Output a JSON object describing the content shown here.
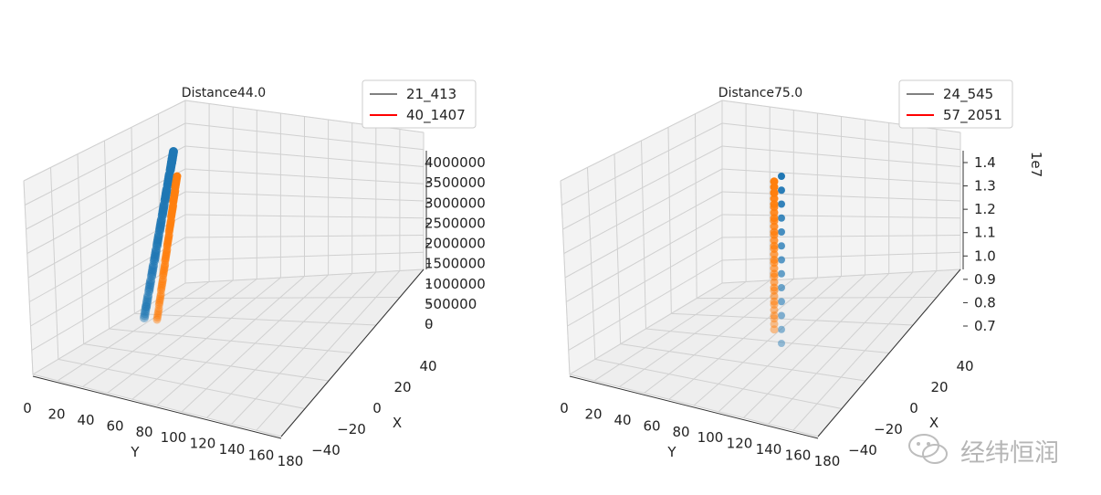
{
  "chart_data": [
    {
      "type": "scatter",
      "projection": "3d",
      "title": "Distance44.0",
      "xlabel": "X",
      "ylabel": "Y",
      "zlabel": "",
      "x_ticks": [
        "−40",
        "−20",
        "0",
        "20",
        "40"
      ],
      "y_ticks": [
        "0",
        "20",
        "40",
        "60",
        "80",
        "100",
        "120",
        "140",
        "160",
        "180"
      ],
      "z_ticks": [
        "0",
        "500000",
        "1000000",
        "1500000",
        "2000000",
        "2500000",
        "3000000",
        "3500000",
        "4000000"
      ],
      "z_multiplier": "",
      "xlim": [
        -50,
        50
      ],
      "ylim": [
        0,
        180
      ],
      "zlim": [
        -200000,
        4200000
      ],
      "grid": true,
      "legend_position": "top-right",
      "legend": [
        {
          "label": "21_413",
          "color": "#808080"
        },
        {
          "label": "40_1407",
          "color": "#ff0000"
        }
      ],
      "series": [
        {
          "color": "#1f77b4",
          "points": [
            [
              0,
              21,
              0
            ],
            [
              0,
              22,
              300000
            ],
            [
              0,
              23,
              700000
            ],
            [
              0,
              24,
              1100000
            ],
            [
              0,
              25,
              1500000
            ],
            [
              0,
              26,
              1900000
            ],
            [
              0,
              28,
              2300000
            ],
            [
              0,
              30,
              2700000
            ],
            [
              0,
              32,
              3100000
            ],
            [
              0,
              34,
              3500000
            ],
            [
              0,
              36,
              3900000
            ],
            [
              0,
              37,
              4100000
            ]
          ]
        },
        {
          "color": "#ff7f0e",
          "points": [
            [
              0,
              40,
              0
            ],
            [
              0,
              42,
              400000
            ],
            [
              0,
              44,
              800000
            ],
            [
              0,
              46,
              1200000
            ],
            [
              0,
              48,
              1600000
            ],
            [
              0,
              50,
              2000000
            ],
            [
              0,
              52,
              2400000
            ],
            [
              0,
              54,
              2800000
            ],
            [
              0,
              56,
              3200000
            ],
            [
              0,
              58,
              3600000
            ]
          ]
        }
      ]
    },
    {
      "type": "scatter",
      "projection": "3d",
      "title": "Distance75.0",
      "xlabel": "X",
      "ylabel": "Y",
      "zlabel": "",
      "x_ticks": [
        "−40",
        "−20",
        "0",
        "20",
        "40"
      ],
      "y_ticks": [
        "0",
        "20",
        "40",
        "60",
        "80",
        "100",
        "120",
        "140",
        "160",
        "180"
      ],
      "z_ticks": [
        "0.7",
        "0.8",
        "0.9",
        "1.0",
        "1.1",
        "1.2",
        "1.3",
        "1.4"
      ],
      "z_multiplier": "1e7",
      "xlim": [
        -50,
        50
      ],
      "ylim": [
        0,
        180
      ],
      "zlim": [
        0.67,
        1.45
      ],
      "grid": true,
      "legend_position": "top-right",
      "legend": [
        {
          "label": "24_545",
          "color": "#808080"
        },
        {
          "label": "57_2051",
          "color": "#ff0000"
        }
      ],
      "series": [
        {
          "color": "#1f77b4",
          "points": [
            [
              0,
              58,
              0.66
            ],
            [
              0,
              58,
              0.72
            ],
            [
              0,
              58,
              0.78
            ],
            [
              0,
              58,
              0.84
            ],
            [
              0,
              58,
              0.9
            ],
            [
              0,
              58,
              0.96
            ],
            [
              0,
              58,
              1.02
            ],
            [
              0,
              58,
              1.08
            ],
            [
              0,
              58,
              1.14
            ],
            [
              0,
              58,
              1.2
            ],
            [
              0,
              58,
              1.26
            ],
            [
              0,
              58,
              1.32
            ],
            [
              0,
              58,
              1.38
            ]
          ]
        },
        {
          "color": "#ff7f0e",
          "points": [
            [
              0,
              40,
              0.72
            ],
            [
              0,
              40,
              0.78
            ],
            [
              0,
              40,
              0.84
            ],
            [
              0,
              40,
              0.9
            ],
            [
              0,
              40,
              0.96
            ],
            [
              0,
              40,
              1.02
            ],
            [
              0,
              40,
              1.08
            ],
            [
              0,
              40,
              1.14
            ],
            [
              0,
              40,
              1.2
            ],
            [
              0,
              40,
              1.26
            ],
            [
              0,
              40,
              1.31
            ]
          ]
        }
      ]
    }
  ],
  "watermark": {
    "text": "经纬恒润",
    "icon": "wechat-icon"
  }
}
